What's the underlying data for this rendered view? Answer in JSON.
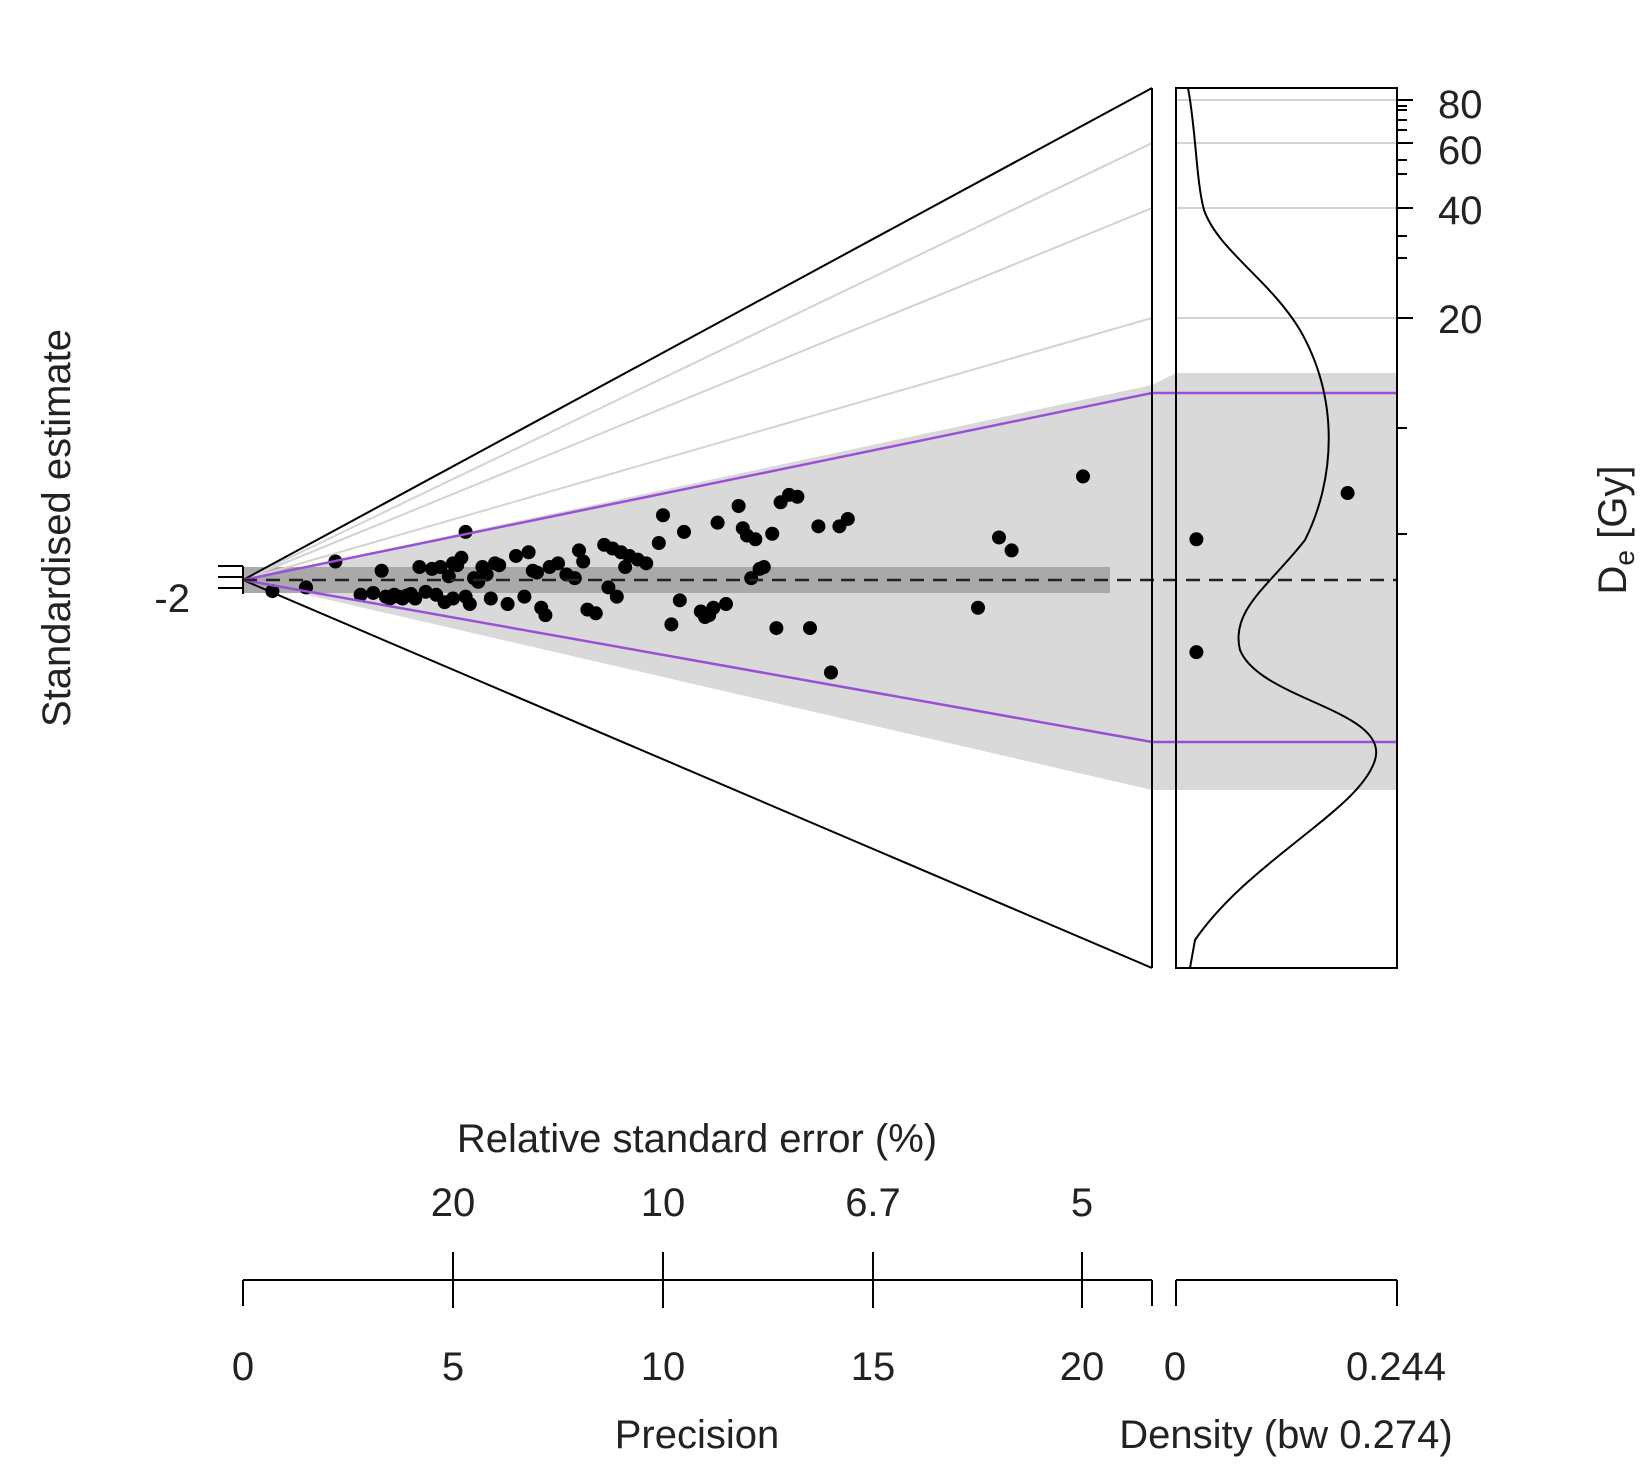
{
  "chart_data": {
    "type": "scatter",
    "variant": "abanico-plot",
    "y_axis": {
      "label": "Standardised estimate",
      "ticks": [
        "-2"
      ]
    },
    "de_axis": {
      "label_main": "D",
      "label_sub": "e",
      "label_unit": " [Gy]",
      "scale": "log",
      "ticks": [
        "20",
        "40",
        "60",
        "80"
      ]
    },
    "rse_axis": {
      "label": "Relative standard error (%)",
      "ticks": [
        "20",
        "10",
        "6.7",
        "5"
      ]
    },
    "precision_axis": {
      "label": "Precision",
      "ticks": [
        "0",
        "5",
        "10",
        "15",
        "20"
      ]
    },
    "density_axis": {
      "label": "Density (bw 0.274)",
      "ticks": [
        "0",
        "0.244"
      ]
    },
    "colors": {
      "points": "#000000",
      "sigma_lines": "#9b4fd6",
      "band_light": "#d9d9d9",
      "band_dark": "#a9a9a9",
      "grid_lines": "#d3d3d3"
    },
    "points": [
      {
        "x": 0.7,
        "y": -0.3
      },
      {
        "x": 1.5,
        "y": -0.2
      },
      {
        "x": 2.2,
        "y": 0.5
      },
      {
        "x": 2.8,
        "y": -0.4
      },
      {
        "x": 3.1,
        "y": -0.35
      },
      {
        "x": 3.3,
        "y": 0.25
      },
      {
        "x": 3.4,
        "y": -0.45
      },
      {
        "x": 3.5,
        "y": -0.5
      },
      {
        "x": 3.6,
        "y": -0.4
      },
      {
        "x": 3.7,
        "y": -0.45
      },
      {
        "x": 3.8,
        "y": -0.5
      },
      {
        "x": 3.9,
        "y": -0.42
      },
      {
        "x": 4.0,
        "y": -0.38
      },
      {
        "x": 4.1,
        "y": -0.5
      },
      {
        "x": 4.2,
        "y": 0.35
      },
      {
        "x": 4.35,
        "y": -0.32
      },
      {
        "x": 4.5,
        "y": 0.3
      },
      {
        "x": 4.6,
        "y": -0.4
      },
      {
        "x": 4.7,
        "y": 0.35
      },
      {
        "x": 4.8,
        "y": -0.6
      },
      {
        "x": 4.9,
        "y": 0.1
      },
      {
        "x": 5.0,
        "y": 0.45
      },
      {
        "x": 5.0,
        "y": -0.5
      },
      {
        "x": 5.1,
        "y": 0.4
      },
      {
        "x": 5.2,
        "y": 0.6
      },
      {
        "x": 5.3,
        "y": -0.45
      },
      {
        "x": 5.3,
        "y": 1.3
      },
      {
        "x": 5.4,
        "y": -0.65
      },
      {
        "x": 5.5,
        "y": 0.05
      },
      {
        "x": 5.6,
        "y": -0.05
      },
      {
        "x": 5.7,
        "y": 0.35
      },
      {
        "x": 5.8,
        "y": 0.15
      },
      {
        "x": 5.9,
        "y": -0.5
      },
      {
        "x": 6.0,
        "y": 0.45
      },
      {
        "x": 6.1,
        "y": 0.4
      },
      {
        "x": 6.3,
        "y": -0.65
      },
      {
        "x": 6.5,
        "y": 0.65
      },
      {
        "x": 6.7,
        "y": -0.45
      },
      {
        "x": 6.8,
        "y": 0.75
      },
      {
        "x": 6.9,
        "y": 0.25
      },
      {
        "x": 7.0,
        "y": 0.2
      },
      {
        "x": 7.1,
        "y": -0.75
      },
      {
        "x": 7.2,
        "y": -0.95
      },
      {
        "x": 7.3,
        "y": 0.35
      },
      {
        "x": 7.5,
        "y": 0.45
      },
      {
        "x": 7.7,
        "y": 0.15
      },
      {
        "x": 7.9,
        "y": 0.05
      },
      {
        "x": 8.0,
        "y": 0.8
      },
      {
        "x": 8.1,
        "y": 0.5
      },
      {
        "x": 8.2,
        "y": -0.8
      },
      {
        "x": 8.4,
        "y": -0.9
      },
      {
        "x": 8.6,
        "y": 0.95
      },
      {
        "x": 8.7,
        "y": -0.2
      },
      {
        "x": 8.8,
        "y": 0.85
      },
      {
        "x": 8.9,
        "y": -0.45
      },
      {
        "x": 9.0,
        "y": 0.75
      },
      {
        "x": 9.1,
        "y": 0.35
      },
      {
        "x": 9.2,
        "y": 0.65
      },
      {
        "x": 9.4,
        "y": 0.55
      },
      {
        "x": 9.6,
        "y": 0.45
      },
      {
        "x": 9.9,
        "y": 1.0
      },
      {
        "x": 10.0,
        "y": 1.75
      },
      {
        "x": 10.2,
        "y": -1.2
      },
      {
        "x": 10.4,
        "y": -0.55
      },
      {
        "x": 10.5,
        "y": 1.3
      },
      {
        "x": 10.9,
        "y": -0.85
      },
      {
        "x": 11.0,
        "y": -1.0
      },
      {
        "x": 11.1,
        "y": -0.95
      },
      {
        "x": 11.2,
        "y": -0.75
      },
      {
        "x": 11.3,
        "y": 1.55
      },
      {
        "x": 11.5,
        "y": -0.65
      },
      {
        "x": 11.8,
        "y": 2.0
      },
      {
        "x": 11.9,
        "y": 1.4
      },
      {
        "x": 12.0,
        "y": 1.2
      },
      {
        "x": 12.1,
        "y": 0.05
      },
      {
        "x": 12.2,
        "y": 1.1
      },
      {
        "x": 12.3,
        "y": 0.3
      },
      {
        "x": 12.4,
        "y": 0.35
      },
      {
        "x": 12.6,
        "y": 1.25
      },
      {
        "x": 12.7,
        "y": -1.3
      },
      {
        "x": 12.8,
        "y": 2.1
      },
      {
        "x": 13.0,
        "y": 2.3
      },
      {
        "x": 13.2,
        "y": 2.25
      },
      {
        "x": 13.5,
        "y": -1.3
      },
      {
        "x": 13.7,
        "y": 1.45
      },
      {
        "x": 14.0,
        "y": -2.5
      },
      {
        "x": 14.2,
        "y": 1.45
      },
      {
        "x": 14.4,
        "y": 1.65
      },
      {
        "x": 17.5,
        "y": -0.75
      },
      {
        "x": 18.0,
        "y": 1.15
      },
      {
        "x": 18.3,
        "y": 0.8
      },
      {
        "x": 20.0,
        "y": 2.8
      },
      {
        "x": 22.7,
        "y": -1.95
      },
      {
        "x": 22.7,
        "y": 1.1
      },
      {
        "x": 26.3,
        "y": 2.35
      }
    ]
  }
}
